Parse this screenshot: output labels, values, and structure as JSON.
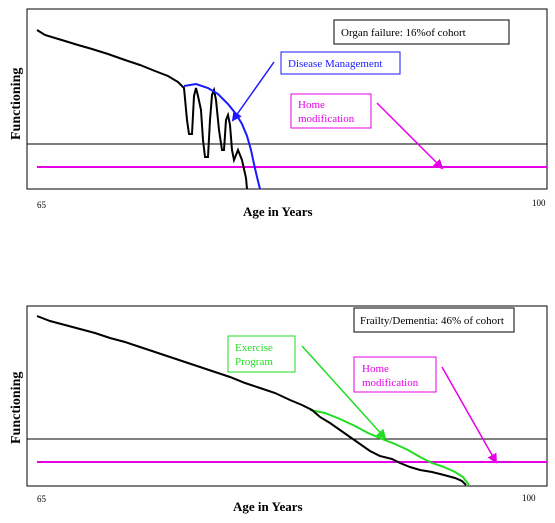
{
  "colors": {
    "curve": "#000000",
    "disease_management": "#1a1aff",
    "home_modification": "#e600e6",
    "exercise_program": "#22dd22",
    "threshold_line": "#000000"
  },
  "top_panel": {
    "title": "Organ failure: 16%of cohort",
    "ylabel": "Functioning",
    "xlabel": "Age in Years",
    "x_min_label": "65",
    "x_max_label": "100",
    "annotations": {
      "disease_management": "Disease Management",
      "home_modification_line1": "Home",
      "home_modification_line2": "modification"
    }
  },
  "bottom_panel": {
    "title": "Frailty/Dementia: 46% of cohort",
    "ylabel": "Functioning",
    "xlabel": "Age in Years",
    "x_min_label": "65",
    "x_max_label": "100",
    "annotations": {
      "exercise_program_line1": "Exercise",
      "exercise_program_line2": "Program",
      "home_modification_line1": "Home",
      "home_modification_line2": "modification"
    }
  }
}
